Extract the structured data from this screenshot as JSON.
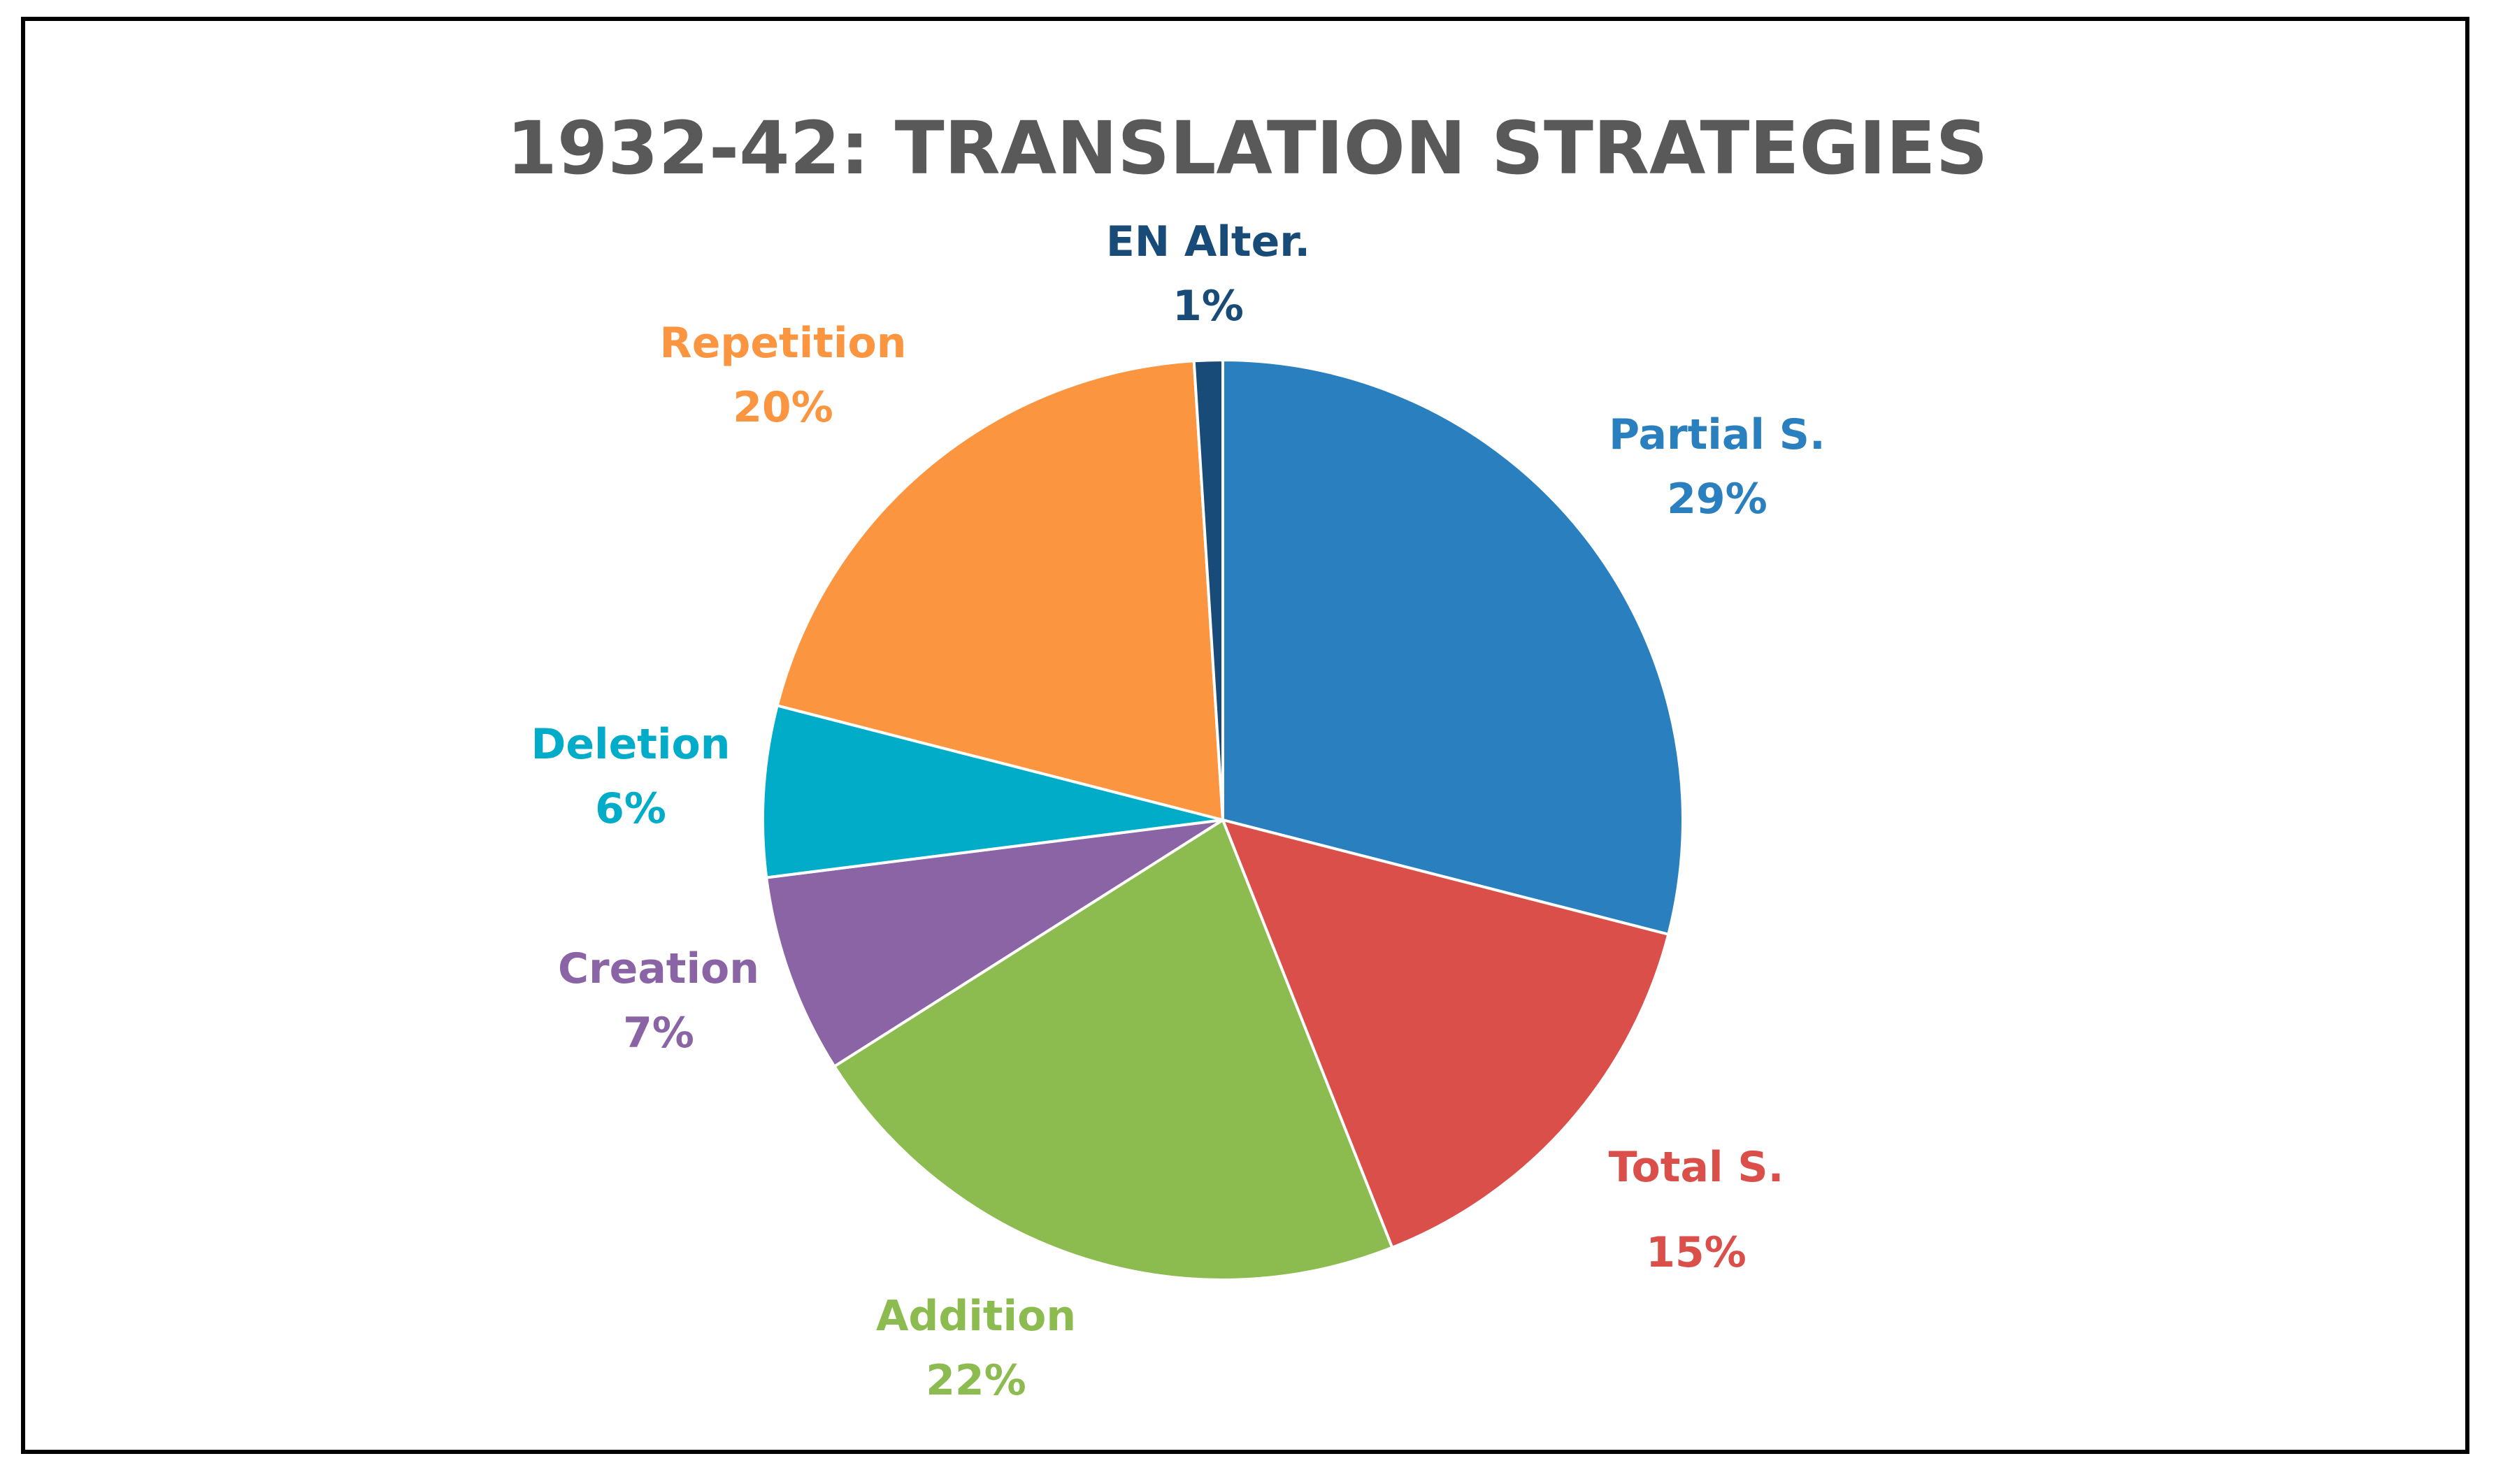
{
  "chart_data": {
    "type": "pie",
    "title": "1932-42: TRANSLATION STRATEGIES",
    "slices": [
      {
        "label": "Partial S.",
        "value": 29,
        "value_label": "29%",
        "color": "#2a80bf"
      },
      {
        "label": "Total S.",
        "value": 15,
        "value_label": "15%",
        "color": "#db4f4b"
      },
      {
        "label": "Addition",
        "value": 22,
        "value_label": "22%",
        "color": "#8cbc4f"
      },
      {
        "label": "Creation",
        "value": 7,
        "value_label": "7%",
        "color": "#8a64a4"
      },
      {
        "label": "Deletion",
        "value": 6,
        "value_label": "6%",
        "color": "#00acc8"
      },
      {
        "label": "Repetition",
        "value": 20,
        "value_label": "20%",
        "color": "#fb9540"
      },
      {
        "label": "EN Alter.",
        "value": 1,
        "value_label": "1%",
        "color": "#184b78"
      }
    ],
    "start_angle": "12 o'clock",
    "direction": "clockwise",
    "legend": "none",
    "data_labels": "outside"
  }
}
